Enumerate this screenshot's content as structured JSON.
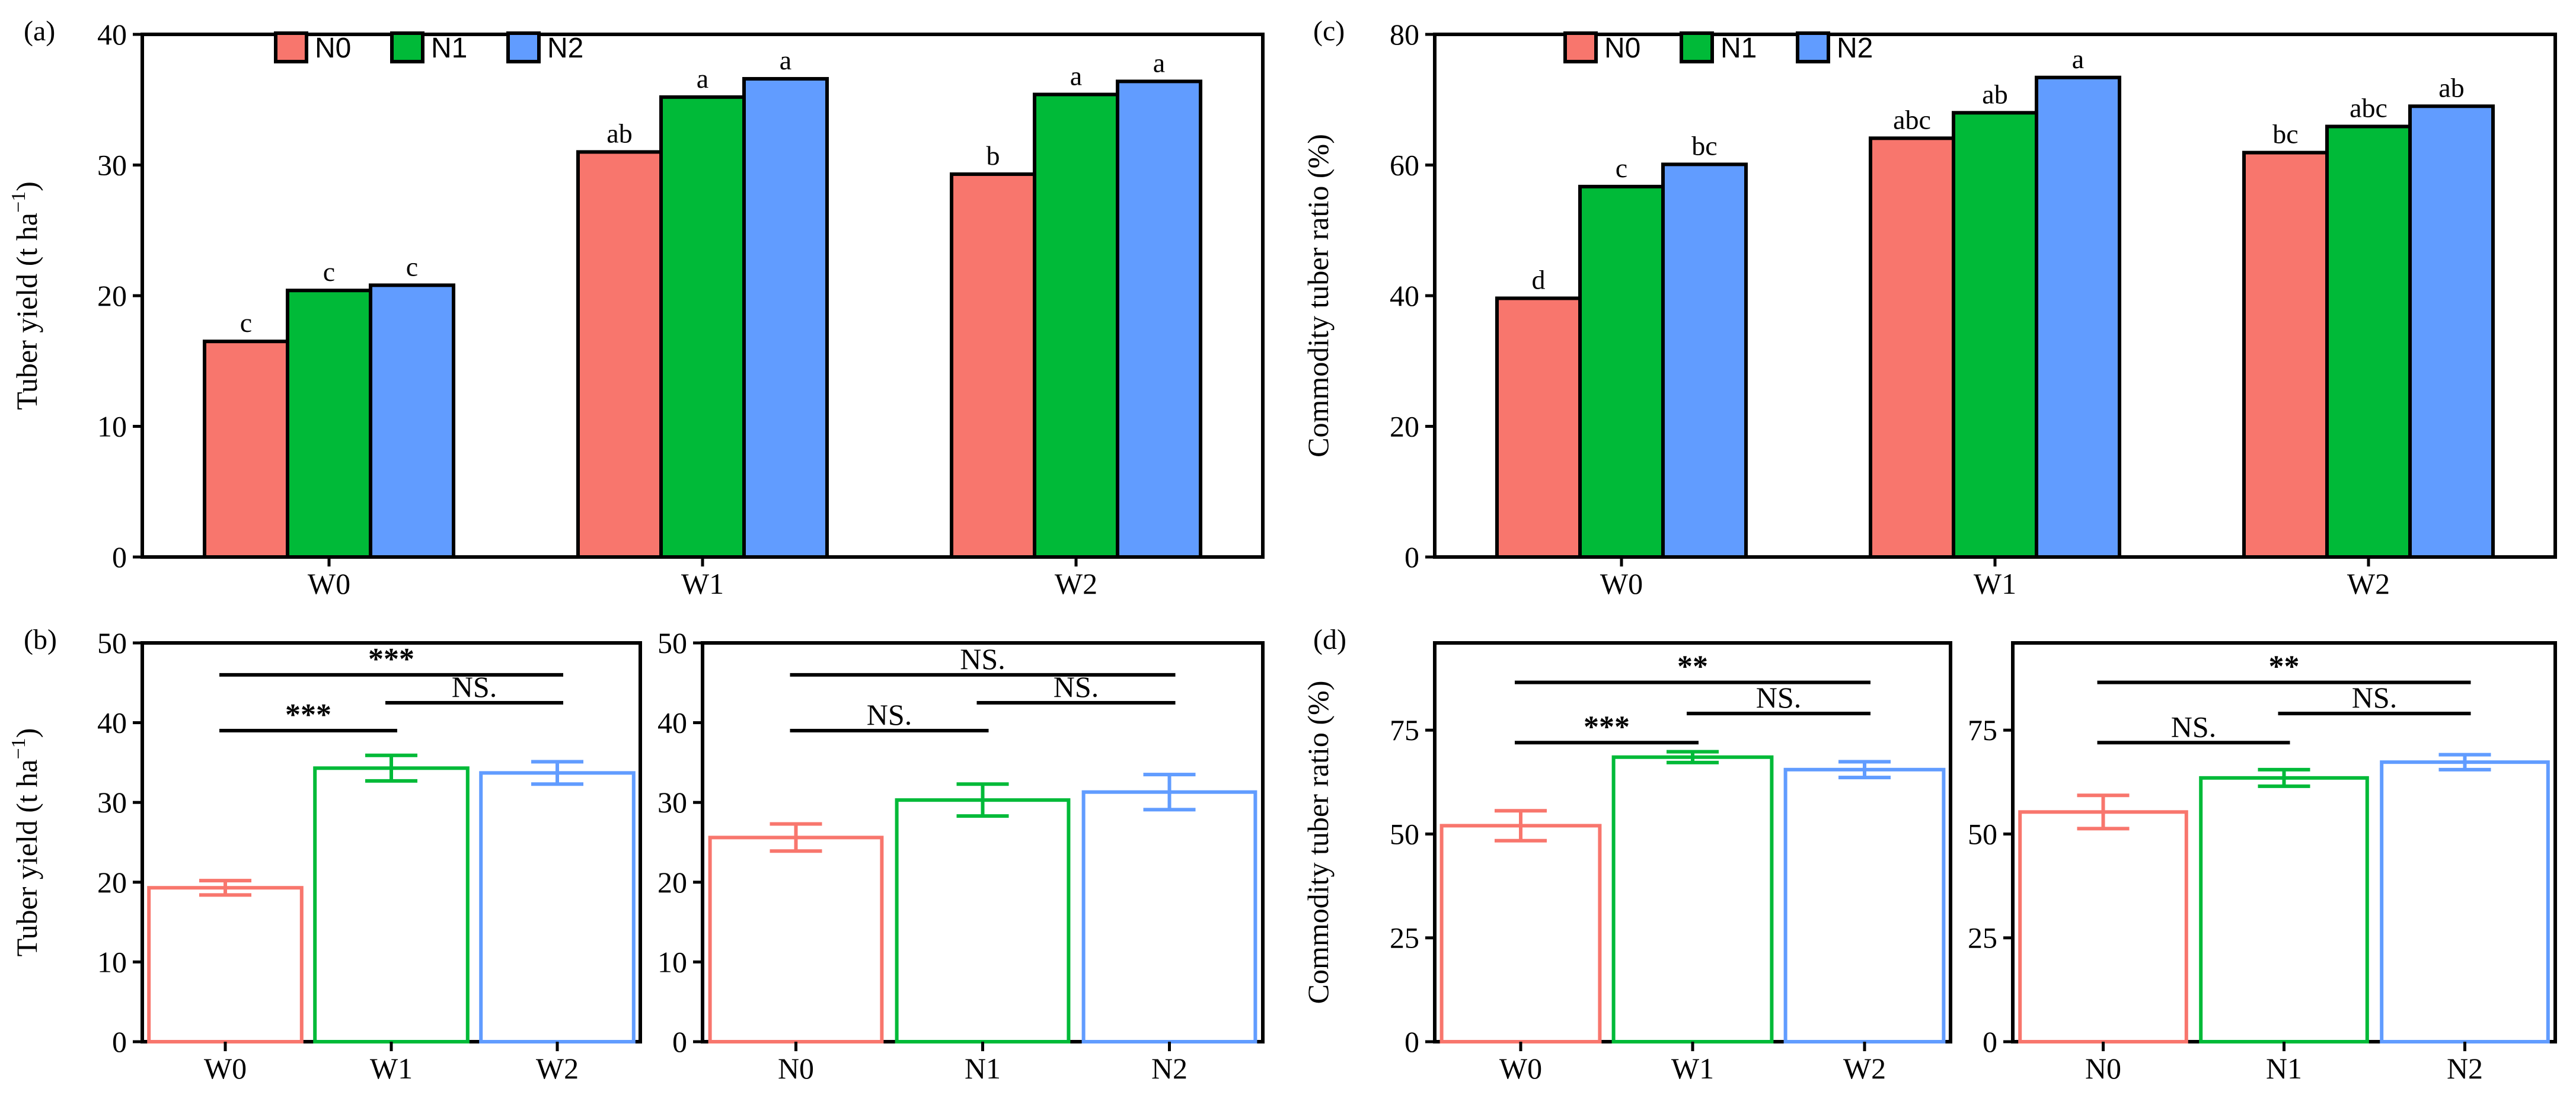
{
  "palette": {
    "N0": "#F8766D",
    "N1": "#00BA38",
    "N2": "#619CFF",
    "W0": "#F8766D",
    "W1": "#00BA38",
    "W2": "#619CFF"
  },
  "chart_data": [
    {
      "id": "a",
      "panel_label": "(a)",
      "type": "bar",
      "ylabel": "Tuber yield (t ha",
      "ylabel_sup": "−1",
      "ylabel_end": ")",
      "ylim": [
        0,
        40
      ],
      "yticks": [
        0,
        10,
        20,
        30,
        40
      ],
      "categories": [
        "W0",
        "W1",
        "W2"
      ],
      "legend": [
        "N0",
        "N1",
        "N2"
      ],
      "legend_position": "top-left",
      "series": [
        {
          "name": "N0",
          "values": [
            16.5,
            31.0,
            29.3
          ],
          "labels": [
            "c",
            "ab",
            "b"
          ]
        },
        {
          "name": "N1",
          "values": [
            20.4,
            35.2,
            35.4
          ],
          "labels": [
            "c",
            "a",
            "a"
          ]
        },
        {
          "name": "N2",
          "values": [
            20.8,
            36.6,
            36.4
          ],
          "labels": [
            "c",
            "a",
            "a"
          ]
        }
      ]
    },
    {
      "id": "c",
      "panel_label": "(c)",
      "type": "bar",
      "ylabel": "Commodity tuber ratio (%)",
      "ylim": [
        0,
        80
      ],
      "yticks": [
        0,
        20,
        40,
        60,
        80
      ],
      "categories": [
        "W0",
        "W1",
        "W2"
      ],
      "legend": [
        "N0",
        "N1",
        "N2"
      ],
      "legend_position": "top-left",
      "series": [
        {
          "name": "N0",
          "values": [
            39.6,
            64.1,
            61.9
          ],
          "labels": [
            "d",
            "abc",
            "bc"
          ]
        },
        {
          "name": "N1",
          "values": [
            56.7,
            68.0,
            65.9
          ],
          "labels": [
            "c",
            "ab",
            "abc"
          ]
        },
        {
          "name": "N2",
          "values": [
            60.1,
            73.4,
            69.0
          ],
          "labels": [
            "bc",
            "a",
            "ab"
          ]
        }
      ]
    },
    {
      "id": "b-left",
      "panel_label": "(b)",
      "type": "bar",
      "ylabel": "Tuber yield (t ha",
      "ylabel_sup": "−1",
      "ylabel_end": ")",
      "ylim": [
        0,
        50
      ],
      "yticks": [
        0,
        10,
        20,
        30,
        40,
        50
      ],
      "categories": [
        "W0",
        "W1",
        "W2"
      ],
      "values": [
        19.3,
        34.3,
        33.7
      ],
      "errors": [
        0.9,
        1.6,
        1.4
      ],
      "comparisons": [
        {
          "from": 0,
          "to": 1,
          "level": 39,
          "label": "***"
        },
        {
          "from": 0,
          "to": 2,
          "level": 46,
          "label": "***"
        },
        {
          "from": 1,
          "to": 2,
          "level": 42.5,
          "label": "NS."
        }
      ]
    },
    {
      "id": "b-right",
      "panel_label": "",
      "type": "bar",
      "ylabel": "",
      "ylim": [
        0,
        50
      ],
      "yticks": [
        0,
        10,
        20,
        30,
        40,
        50
      ],
      "categories": [
        "N0",
        "N1",
        "N2"
      ],
      "values": [
        25.6,
        30.3,
        31.3
      ],
      "errors": [
        1.7,
        2.0,
        2.2
      ],
      "comparisons": [
        {
          "from": 0,
          "to": 1,
          "level": 39,
          "label": "NS."
        },
        {
          "from": 0,
          "to": 2,
          "level": 46,
          "label": "NS."
        },
        {
          "from": 1,
          "to": 2,
          "level": 42.5,
          "label": "NS."
        }
      ]
    },
    {
      "id": "d-left",
      "panel_label": "(d)",
      "type": "bar",
      "ylabel": "Commodity tuber ratio (%)",
      "ylim": [
        0,
        96
      ],
      "yticks": [
        0,
        25,
        50,
        75
      ],
      "categories": [
        "W0",
        "W1",
        "W2"
      ],
      "values": [
        52.0,
        68.5,
        65.5
      ],
      "errors": [
        3.6,
        1.3,
        1.9
      ],
      "comparisons": [
        {
          "from": 0,
          "to": 1,
          "level": 72,
          "label": "***"
        },
        {
          "from": 0,
          "to": 2,
          "level": 86.5,
          "label": "**"
        },
        {
          "from": 1,
          "to": 2,
          "level": 79,
          "label": "NS."
        }
      ]
    },
    {
      "id": "d-right",
      "panel_label": "",
      "type": "bar",
      "ylabel": "",
      "ylim": [
        0,
        96
      ],
      "yticks": [
        0,
        25,
        50,
        75
      ],
      "categories": [
        "N0",
        "N1",
        "N2"
      ],
      "values": [
        55.3,
        63.5,
        67.3
      ],
      "errors": [
        4.0,
        2.0,
        1.8
      ],
      "comparisons": [
        {
          "from": 0,
          "to": 1,
          "level": 72,
          "label": "NS."
        },
        {
          "from": 0,
          "to": 2,
          "level": 86.5,
          "label": "**"
        },
        {
          "from": 1,
          "to": 2,
          "level": 79,
          "label": "NS."
        }
      ]
    }
  ]
}
